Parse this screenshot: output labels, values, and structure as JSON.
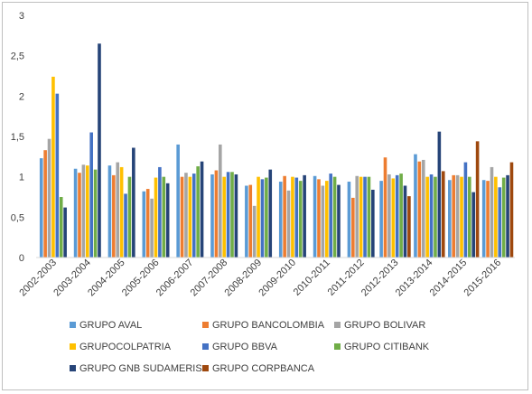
{
  "chart_data": {
    "type": "bar",
    "title": "",
    "xlabel": "",
    "ylabel": "",
    "ylim": [
      0,
      3
    ],
    "yticks": [
      "0",
      "0,5",
      "1",
      "1,5",
      "2",
      "2,5",
      "3"
    ],
    "grid": false,
    "legend_position": "bottom",
    "categories": [
      "2002-2003",
      "2003-2004",
      "2004-2005",
      "2005-2006",
      "2006-2007",
      "2007-2008",
      "2008-2009",
      "2009-2010",
      "2010-2011",
      "2011-2012",
      "2012-2013",
      "2013-2014",
      "2014-2015",
      "2015-2016"
    ],
    "series": [
      {
        "name": "GRUPO AVAL",
        "color": "#5b9bd5",
        "values": [
          1.23,
          1.1,
          1.14,
          0.82,
          1.4,
          1.03,
          0.89,
          0.94,
          1.01,
          0.94,
          0.95,
          1.28,
          0.96,
          0.96
        ]
      },
      {
        "name": "GRUPO BANCOLOMBIA",
        "color": "#ed7d31",
        "values": [
          1.33,
          1.05,
          1.02,
          0.85,
          1.0,
          1.08,
          0.9,
          1.01,
          0.97,
          0.74,
          1.24,
          1.19,
          1.02,
          0.95
        ]
      },
      {
        "name": "GRUPO BOLIVAR",
        "color": "#a5a5a5",
        "values": [
          1.47,
          1.15,
          1.18,
          0.73,
          1.05,
          1.4,
          0.64,
          0.83,
          0.89,
          1.01,
          1.03,
          1.21,
          1.02,
          1.12
        ]
      },
      {
        "name": "GRUPOCOLPATRIA",
        "color": "#ffc000",
        "values": [
          2.24,
          1.14,
          1.12,
          0.99,
          1.0,
          1.0,
          1.0,
          1.0,
          0.95,
          1.0,
          0.98,
          1.0,
          1.0,
          1.0
        ]
      },
      {
        "name": "GRUPO BBVA",
        "color": "#4472c4",
        "values": [
          2.03,
          1.55,
          0.79,
          1.12,
          1.04,
          1.06,
          0.97,
          0.99,
          1.04,
          1.0,
          1.02,
          1.03,
          1.18,
          0.87
        ]
      },
      {
        "name": "GRUPO CITIBANK",
        "color": "#70ad47",
        "values": [
          0.75,
          1.09,
          1.0,
          1.0,
          1.13,
          1.06,
          0.99,
          0.95,
          1.0,
          1.0,
          1.04,
          1.0,
          1.0,
          0.99
        ]
      },
      {
        "name": "GRUPO GNB SUDAMERIS",
        "color": "#264478",
        "values": [
          0.62,
          2.65,
          1.36,
          0.92,
          1.19,
          1.03,
          1.09,
          1.02,
          0.9,
          0.84,
          0.89,
          1.56,
          0.81,
          1.02
        ]
      },
      {
        "name": "GRUPO CORPBANCA",
        "color": "#9e480e",
        "values": [
          null,
          null,
          null,
          null,
          null,
          null,
          null,
          null,
          null,
          null,
          0.76,
          1.07,
          1.44,
          1.18
        ]
      }
    ]
  }
}
